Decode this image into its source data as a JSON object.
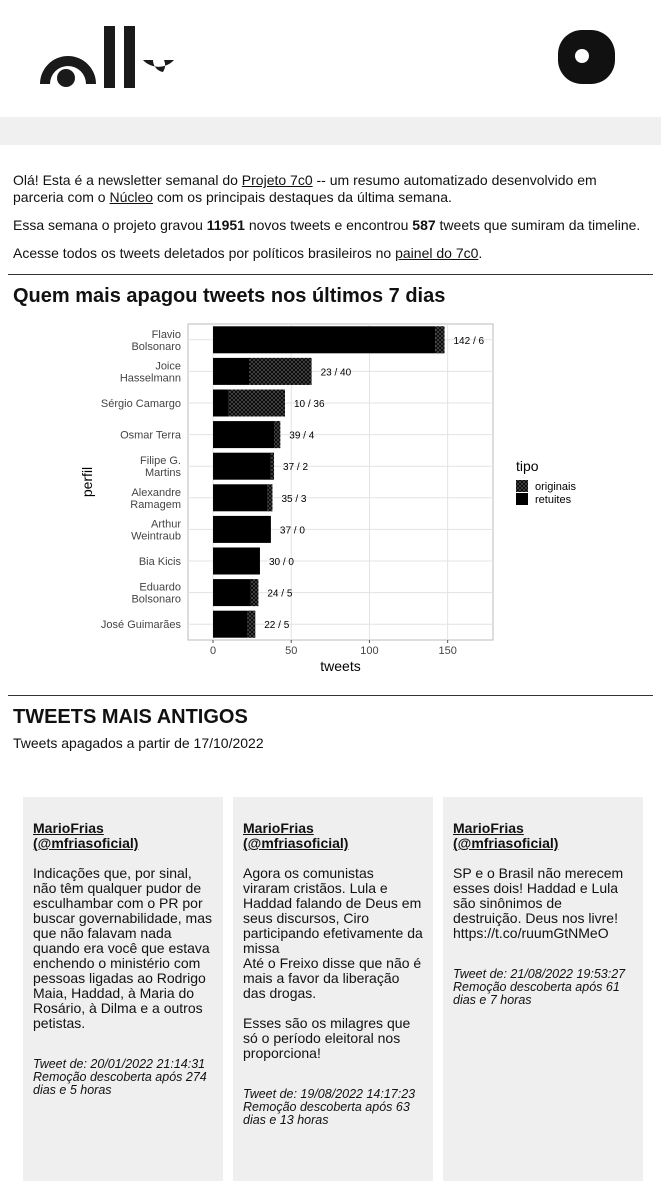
{
  "intro": {
    "p1": [
      "Olá! Esta é a newsletter semanal do ",
      "Projeto 7c0",
      " -- um resumo automatizado desenvolvido em parceria com o ",
      "Núcleo",
      " com os principais destaques da última semana."
    ],
    "p2": [
      "Essa semana o projeto gravou ",
      "11951",
      " novos tweets e encontrou ",
      "587",
      " tweets que sumiram da timeline."
    ],
    "p3": [
      "Acesse todos os tweets deletados por políticos brasileiros no ",
      "painel do 7c0",
      "."
    ]
  },
  "chart_section": {
    "heading": "Quem mais apagou tweets nos últimos 7 dias",
    "chart_data": {
      "type": "bar",
      "orientation": "horizontal",
      "stacked": true,
      "categories": [
        "Flavio\nBolsonaro",
        "Joice\nHasselmann",
        "Sérgio Camargo",
        "Osmar Terra",
        "Filipe G.\nMartins",
        "Alexandre\nRamagem",
        "Arthur\nWeintraub",
        "Bia Kicis",
        "Eduardo\nBolsonaro",
        "José Guimarães"
      ],
      "series": [
        {
          "name": "retuites",
          "color": "#000000",
          "values": [
            142,
            23,
            10,
            39,
            37,
            35,
            37,
            30,
            24,
            22
          ]
        },
        {
          "name": "originais",
          "color": "#4a4a4a",
          "pattern": "crosshatch",
          "values": [
            6,
            40,
            36,
            4,
            2,
            3,
            0,
            0,
            5,
            5
          ]
        }
      ],
      "value_labels": [
        "142 / 6",
        "23 / 40",
        "10 / 36",
        "39 / 4",
        "37 / 2",
        "35 / 3",
        "37 / 0",
        "30 / 0",
        "24 / 5",
        "22 / 5"
      ],
      "xlim": [
        -16,
        179
      ],
      "xticks": [
        0,
        50,
        100,
        150
      ],
      "x_label": "tweets",
      "y_label": "perfil",
      "legend_title": "tipo",
      "legend_order": [
        1,
        0
      ],
      "legend_position": "right",
      "grid": true
    }
  },
  "tweets": {
    "heading": "TWEETS MAIS ANTIGOS",
    "subtitle": "Tweets apagados a partir de 17/10/2022",
    "cards": [
      {
        "author": "MarioFrias",
        "handle": "(@mfriasoficial)",
        "paragraphs": [
          "Indicações que, por sinal, não têm qualquer pudor de esculhambar com o PR por buscar governabilidade, mas que não falavam nada quando era você que estava enchendo o ministério com pessoas ligadas ao Rodrigo Maia, Haddad, à Maria do Rosário, à Dilma e a outros petistas."
        ],
        "date": "Tweet de: 20/01/2022 21:14:31",
        "removal": "Remoção descoberta após 274 dias e 5 horas"
      },
      {
        "author": "MarioFrias",
        "handle": "(@mfriasoficial)",
        "paragraphs": [
          "Agora os comunistas viraram cristãos. Lula e Haddad falando de Deus em seus discursos, Ciro participando efetivamente da missa\nAté o Freixo disse que não é mais a favor da liberação das drogas.",
          "Esses são os milagres que só o período eleitoral nos proporciona!"
        ],
        "date": "Tweet de: 19/08/2022 14:17:23",
        "removal": "Remoção descoberta após 63 dias e 13 horas"
      },
      {
        "author": "MarioFrias",
        "handle": "(@mfriasoficial)",
        "paragraphs": [
          "SP e o Brasil não merecem esses dois! Haddad e Lula são sinônimos de destruição. Deus nos livre! https://t.co/ruumGtNMeO"
        ],
        "date": "Tweet de: 21/08/2022 19:53:27",
        "removal": "Remoção descoberta após 61 dias e 7 horas"
      }
    ]
  }
}
